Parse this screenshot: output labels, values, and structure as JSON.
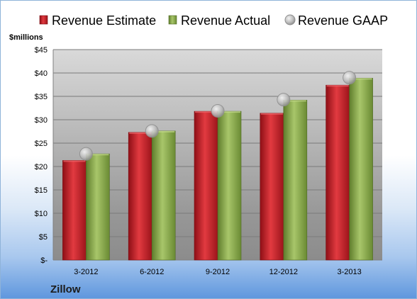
{
  "chart_data": {
    "type": "bar",
    "ylabel": "$millions",
    "ylim": [
      0,
      45
    ],
    "yticks": [
      0,
      5,
      10,
      15,
      20,
      25,
      30,
      35,
      40,
      45
    ],
    "ytick_labels": [
      "$-",
      "$5",
      "$10",
      "$15",
      "$20",
      "$25",
      "$30",
      "$35",
      "$40",
      "$45"
    ],
    "categories": [
      "3-2012",
      "6-2012",
      "9-2012",
      "12-2012",
      "3-2013"
    ],
    "series": [
      {
        "name": "Revenue Estimate",
        "mark": "bar",
        "color": "#c0202a",
        "values": [
          21.3,
          27.3,
          31.8,
          31.4,
          37.4
        ]
      },
      {
        "name": "Revenue Actual",
        "mark": "bar",
        "color": "#8aab4a",
        "values": [
          22.7,
          27.6,
          31.8,
          34.2,
          38.9
        ]
      },
      {
        "name": "Revenue GAAP",
        "mark": "marker",
        "color": "#b8b8b8",
        "values": [
          22.7,
          27.6,
          31.9,
          34.3,
          39.0
        ]
      }
    ],
    "legend": "top",
    "grid": true,
    "footer": "Zillow"
  }
}
